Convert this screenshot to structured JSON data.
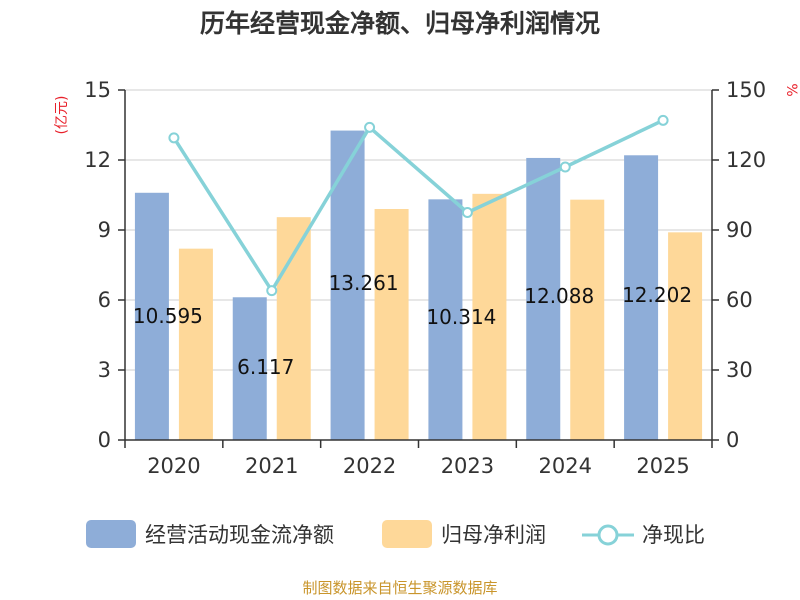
{
  "colors": {
    "cash_flow_bar": "#8eadd8",
    "net_profit_bar": "#fed899",
    "ratio_line": "#86d2d8",
    "axis": "#333333",
    "grid": "#cfcfcf",
    "unit_text": "#e8202a",
    "source_text": "#c9952b"
  },
  "chart_data": {
    "type": "bar",
    "title": "历年经营现金净额、归母净利润情况",
    "categories": [
      "2020",
      "2021",
      "2022",
      "2023",
      "2024",
      "2025"
    ],
    "series": [
      {
        "name": "经营活动现金流净额",
        "axis": "left",
        "values": [
          10.595,
          6.117,
          13.261,
          10.314,
          12.088,
          12.202
        ],
        "labels": [
          "10.595",
          "6.117",
          "13.261",
          "10.314",
          "12.088",
          "12.202"
        ]
      },
      {
        "name": "归母净利润",
        "axis": "left",
        "values": [
          8.2,
          9.55,
          9.9,
          10.55,
          10.3,
          8.9
        ]
      },
      {
        "name": "净现比",
        "axis": "right",
        "type": "line",
        "values": [
          129.5,
          64,
          134,
          97.5,
          117,
          137
        ]
      }
    ],
    "left_axis": {
      "label": "(亿元)",
      "ylim": [
        0,
        15
      ],
      "ticks": [
        "0",
        "3",
        "6",
        "9",
        "12",
        "15"
      ]
    },
    "right_axis": {
      "label": "%",
      "ylim": [
        0,
        150
      ],
      "ticks": [
        "0",
        "30",
        "60",
        "90",
        "120",
        "150"
      ]
    },
    "legend": [
      "经营活动现金流净额",
      "归母净利润",
      "净现比"
    ],
    "legend_position": "bottom",
    "grid": true
  },
  "source": "制图数据来自恒生聚源数据库"
}
